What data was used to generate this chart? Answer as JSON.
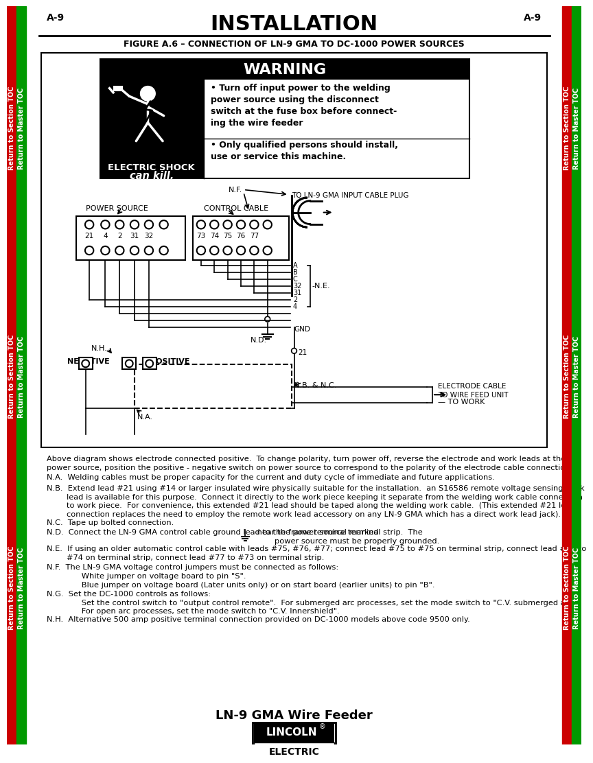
{
  "page_label_left": "A-9",
  "page_label_right": "A-9",
  "main_title": "INSTALLATION",
  "figure_title": "FIGURE A.6 – CONNECTION OF LN-9 GMA TO DC-1000 POWER SOURCES",
  "warning_title": "WARNING",
  "warning_text1": "• Turn off input power to the welding\npower source using the disconnect\nswitch at the fuse box before connect-\ning the wire feeder",
  "warning_text2": "• Only qualified persons should install,\nuse or service this machine.",
  "shock_text1": "ELECTRIC SHOCK",
  "shock_text2": "can kill.",
  "footer_title": "LN-9 GMA Wire Feeder",
  "note0": "Above diagram shows electrode connected positive.  To change polarity, turn power off, reverse the electrode and work leads at the\npower source, position the positive - negative switch on power source to correspond to the polarity of the electrode cable connection.",
  "noteA": "N.A.  Welding cables must be proper capacity for the current and duty cycle of immediate and future applications.",
  "noteB": "N.B.  Extend lead #21 using #14 or larger insulated wire physically suitable for the installation.  an S16586 remote voltage sensing work\n        lead is available for this purpose.  Connect it directly to the work piece keeping it separate from the welding work cable connection\n        to work piece.  For convenience, this extended #21 lead should be taped along the welding work cable.  (This extended #21 lead\n        connection replaces the need to employ the remote work lead accessory on any LN-9 GMA which has a direct work lead jack).",
  "noteC": "N.C.  Tape up bolted connection.",
  "noteD1": "N.D.  Connect the LN-9 GMA control cable ground lead to the frame terminal marked ",
  "noteD2": " near the power source terminal strip.  The\n        power source must be properly grounded.",
  "noteE": "N.E.  If using an older automatic control cable with leads #75, #76, #77; connect lead #75 to #75 on terminal strip, connect lead #76 to\n        #74 on terminal strip, connect lead #77 to #73 on terminal strip.",
  "noteF": "N.F.  The LN-9 GMA voltage control jumpers must be connected as follows:\n              White jumper on voltage board to pin \"S\".\n              Blue jumper on voltage board (Later units only) or on start board (earlier units) to pin \"B\".",
  "noteG": "N.G.  Set the DC-1000 controls as follows:\n              Set the control switch to \"output control remote\".  For submerged arc processes, set the mode switch to \"C.V. submerged arc\".\n              For open arc processes, set the mode switch to \"C.V. Innershield\".",
  "noteH": "N.H.  Alternative 500 amp positive terminal connection provided on DC-1000 models above code 9500 only.",
  "bg_color": "#ffffff",
  "sidebar_red": "#cc0000",
  "sidebar_green": "#009900"
}
